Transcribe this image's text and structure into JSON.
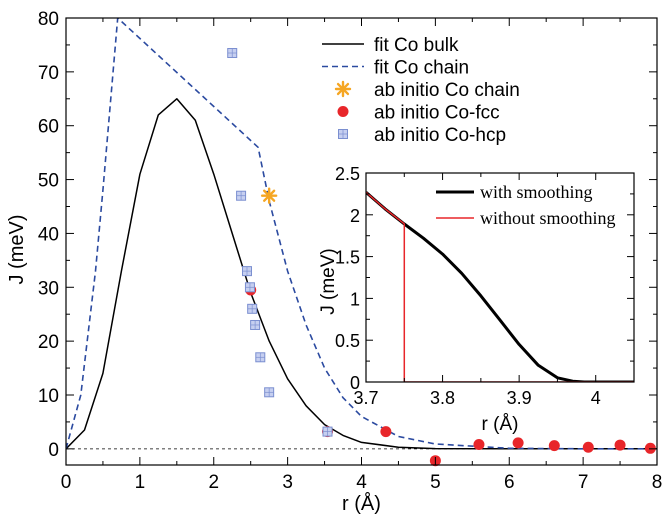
{
  "chart_data": [
    {
      "type": "line",
      "xlabel": "r (Å)",
      "ylabel": "J (meV)",
      "xlim": [
        0,
        8
      ],
      "ylim": [
        -3,
        80
      ],
      "xticks": [
        "0",
        "1",
        "2",
        "3",
        "4",
        "5",
        "6",
        "7",
        "8"
      ],
      "yticks": [
        "0",
        "10",
        "20",
        "30",
        "40",
        "50",
        "60",
        "70",
        "80"
      ],
      "grid": false,
      "legend_position": "top-right",
      "series": [
        {
          "name": "fit Co bulk",
          "style": "solid",
          "color": "#000000",
          "x": [
            0,
            0.25,
            0.5,
            0.75,
            1.0,
            1.25,
            1.5,
            1.75,
            2.0,
            2.25,
            2.5,
            2.75,
            3.0,
            3.25,
            3.5,
            3.75,
            4.0,
            4.5,
            5.0,
            6.0,
            7.0,
            8.0
          ],
          "y": [
            0,
            3.5,
            14,
            33,
            51,
            62,
            65,
            61,
            51,
            40,
            29,
            20,
            13,
            8,
            4.5,
            2.5,
            1.2,
            0.3,
            0.05,
            0,
            0,
            0
          ]
        },
        {
          "name": "fit Co chain",
          "style": "dashed",
          "color": "#2b4aa0",
          "x": [
            0,
            0.2,
            0.4,
            0.5,
            0.6,
            0.7,
            2.6,
            2.75,
            3.0,
            3.25,
            3.5,
            3.75,
            4.0,
            4.5,
            5.0,
            6.0,
            7.0,
            8.0
          ],
          "y": [
            0,
            10,
            33,
            48,
            64,
            80,
            56,
            46,
            33,
            23,
            15,
            9.5,
            6,
            2.3,
            0.9,
            0.1,
            0,
            0
          ]
        },
        {
          "name": "ab initio Co chain",
          "marker": "asterisk",
          "color": "#f5a623",
          "x": [
            2.75
          ],
          "y": [
            47
          ]
        },
        {
          "name": "ab initio Co-fcc",
          "marker": "circle",
          "color": "#e8262a",
          "x": [
            2.5,
            3.54,
            4.33,
            5.0,
            5.59,
            6.12,
            6.61,
            7.07,
            7.5,
            7.91
          ],
          "y": [
            29.5,
            3.2,
            3.2,
            -2.2,
            0.8,
            1.1,
            0.6,
            0.3,
            0.7,
            0.1
          ]
        },
        {
          "name": "ab initio Co-hcp",
          "marker": "square",
          "color": "#7b8fd0",
          "x": [
            2.25,
            2.37,
            2.45,
            2.49,
            2.52,
            2.56,
            2.63,
            2.75,
            3.54
          ],
          "y": [
            73.5,
            47,
            33,
            30,
            26,
            23,
            17,
            10.5,
            3.2
          ]
        }
      ]
    },
    {
      "type": "line",
      "xlabel": "r (Å)",
      "ylabel": "J (meV)",
      "xlim": [
        3.7,
        4.05
      ],
      "ylim": [
        0,
        2.5
      ],
      "xticks": [
        "3.7",
        "3.8",
        "3.9",
        "4"
      ],
      "yticks": [
        "0",
        "0.5",
        "1",
        "1.5",
        "2",
        "2.5"
      ],
      "grid": false,
      "legend_position": "top-right",
      "series": [
        {
          "name": "with smoothing",
          "color": "#000000",
          "x": [
            3.7,
            3.725,
            3.75,
            3.775,
            3.8,
            3.825,
            3.85,
            3.875,
            3.9,
            3.925,
            3.95,
            3.97,
            3.985,
            4.0,
            4.05
          ],
          "y": [
            2.27,
            2.07,
            1.89,
            1.72,
            1.53,
            1.3,
            1.03,
            0.74,
            0.45,
            0.2,
            0.05,
            0.01,
            0.0,
            0.0,
            0.0
          ]
        },
        {
          "name": "without smoothing",
          "color": "#e8262a",
          "x": [
            3.7,
            3.725,
            3.749,
            3.75,
            3.75,
            4.05
          ],
          "y": [
            2.27,
            2.07,
            1.9,
            1.89,
            0,
            0
          ]
        }
      ]
    }
  ]
}
